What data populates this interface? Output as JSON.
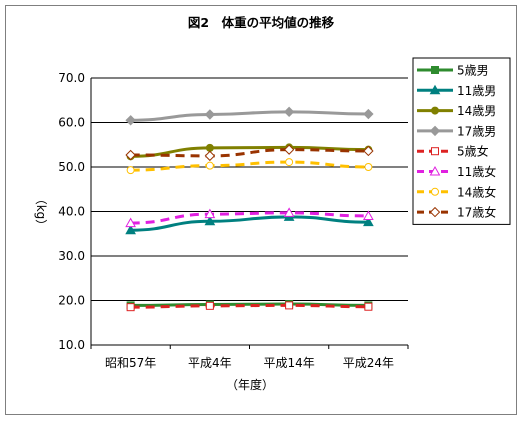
{
  "chart_data": {
    "type": "line",
    "title": "図2　体重の平均値の推移",
    "xlabel": "（年度）",
    "ylabel": "（kg）",
    "ylim": [
      10,
      70
    ],
    "yticks": [
      "10.0",
      "20.0",
      "30.0",
      "40.0",
      "50.0",
      "60.0",
      "70.0"
    ],
    "categories": [
      "昭和57年",
      "平成4年",
      "平成14年",
      "平成24年"
    ],
    "grid": true,
    "legend": "right",
    "series": [
      {
        "name": "5歳男",
        "values": [
          18.9,
          19.1,
          19.2,
          18.9
        ],
        "color": "#2e8b2e",
        "dash": false,
        "marker": "square",
        "filled": true
      },
      {
        "name": "11歳男",
        "values": [
          35.8,
          37.8,
          38.8,
          37.6
        ],
        "color": "#008080",
        "dash": false,
        "marker": "triangle",
        "filled": true
      },
      {
        "name": "14歳男",
        "values": [
          52.4,
          54.3,
          54.4,
          53.9
        ],
        "color": "#808000",
        "dash": false,
        "marker": "circle",
        "filled": true
      },
      {
        "name": "17歳男",
        "values": [
          60.5,
          61.8,
          62.4,
          61.9
        ],
        "color": "#999999",
        "dash": false,
        "marker": "diamond",
        "filled": true
      },
      {
        "name": "5歳女",
        "values": [
          18.5,
          18.8,
          18.9,
          18.6
        ],
        "color": "#dd2222",
        "dash": true,
        "marker": "square",
        "filled": false
      },
      {
        "name": "11歳女",
        "values": [
          37.4,
          39.4,
          39.7,
          39.0
        ],
        "color": "#e020e0",
        "dash": true,
        "marker": "triangle",
        "filled": false
      },
      {
        "name": "14歳女",
        "values": [
          49.3,
          50.3,
          51.1,
          50.0
        ],
        "color": "#ffc000",
        "dash": true,
        "marker": "circle",
        "filled": false
      },
      {
        "name": "17歳女",
        "values": [
          52.7,
          52.5,
          53.9,
          53.6
        ],
        "color": "#993300",
        "dash": true,
        "marker": "diamond",
        "filled": false
      }
    ]
  }
}
